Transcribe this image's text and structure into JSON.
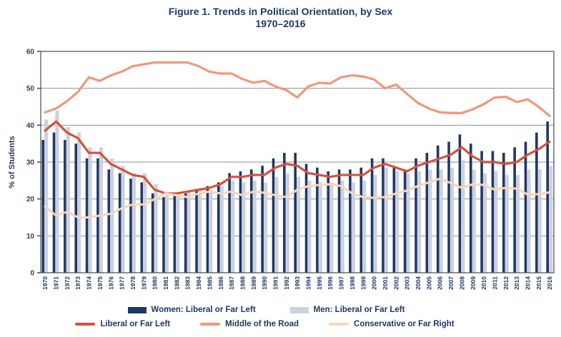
{
  "title": {
    "line1": "Figure 1. Trends in Political Orientation, by Sex",
    "line2": "1970–2016"
  },
  "colors": {
    "title_text": "#1f3864",
    "women_bar": "#1f3864",
    "men_bar": "#ccd2dd",
    "liberal_line": "#d85038",
    "middle_line": "#f0977a",
    "conservative_line": "#f8d5c0",
    "gridline": "#8f8f8f",
    "plot_border": "#4a4a4a",
    "axis_text": "#2f3a52"
  },
  "legend": {
    "row1": [
      {
        "label": "Women: Liberal or Far Left",
        "color": "#1f3864",
        "shape": "bar"
      },
      {
        "label": "Men: Liberal or Far Left",
        "color": "#ccd2dd",
        "shape": "bar"
      }
    ],
    "row2": [
      {
        "label": "Liberal or Far Left",
        "color": "#d85038",
        "shape": "line"
      },
      {
        "label": "Middle of the Road",
        "color": "#f0977a",
        "shape": "line"
      },
      {
        "label": "Conservative or Far Right",
        "color": "#f8d5c0",
        "shape": "line"
      }
    ]
  },
  "chart_data": {
    "type": "bar",
    "subtype": "grouped-bars-with-overlay-lines",
    "title": "Figure 1. Trends in Political Orientation, by Sex 1970–2016",
    "xlabel": "",
    "ylabel": "% of Students",
    "ylim": [
      0,
      60
    ],
    "yticks": [
      0,
      10,
      20,
      30,
      40,
      50,
      60
    ],
    "grid": true,
    "legend_position": "bottom",
    "categories": [
      1970,
      1971,
      1972,
      1973,
      1974,
      1975,
      1976,
      1977,
      1978,
      1979,
      1980,
      1981,
      1982,
      1983,
      1984,
      1985,
      1986,
      1987,
      1988,
      1989,
      1990,
      1991,
      1992,
      1993,
      1994,
      1995,
      1996,
      1997,
      1998,
      1999,
      2000,
      2001,
      2002,
      2003,
      2004,
      2005,
      2006,
      2007,
      2008,
      2009,
      2010,
      2011,
      2012,
      2013,
      2014,
      2015,
      2016
    ],
    "series": [
      {
        "name": "Women: Liberal or Far Left",
        "render": "bar",
        "color": "#1f3864",
        "values": [
          36,
          38,
          36,
          35,
          31,
          31,
          28,
          27,
          25.5,
          24.5,
          21.5,
          20.5,
          21,
          21.5,
          22.5,
          23.5,
          24.5,
          27,
          27.5,
          28,
          29,
          31,
          32.5,
          32.5,
          29.5,
          28.5,
          27.5,
          28,
          28,
          28.5,
          31,
          31,
          29,
          28,
          31,
          32.5,
          34.5,
          35.5,
          37.5,
          35,
          33,
          33,
          32.5,
          34,
          35.5,
          38,
          41
        ]
      },
      {
        "name": "Men: Liberal or Far Left",
        "render": "bar",
        "color": "#ccd2dd",
        "values": [
          41.5,
          44,
          39.5,
          38,
          34,
          34,
          31,
          29,
          27,
          27,
          24,
          21,
          21.5,
          22,
          22.5,
          22.5,
          23.5,
          25,
          24.5,
          25,
          24.5,
          26,
          27,
          26,
          25,
          24.5,
          24.5,
          25,
          24.5,
          25,
          26.5,
          28.5,
          27.5,
          27,
          27.5,
          28,
          28,
          28.5,
          30.5,
          28,
          27,
          27.5,
          26.5,
          26.5,
          28,
          28,
          29
        ]
      },
      {
        "name": "Liberal or Far Left",
        "render": "line",
        "color": "#d85038",
        "values": [
          38.5,
          41,
          38,
          36.5,
          32.5,
          32.5,
          29.5,
          28,
          26.5,
          26,
          22.5,
          21.5,
          21.5,
          22,
          22.5,
          23,
          24,
          26,
          26,
          26.5,
          26.5,
          28.5,
          29.5,
          29,
          27,
          26.5,
          26,
          26.5,
          26.5,
          26.5,
          28.5,
          29.5,
          28.5,
          27.5,
          29,
          30,
          31,
          32,
          34,
          31.5,
          30,
          30,
          29.5,
          30,
          32,
          33.5,
          35.5
        ]
      },
      {
        "name": "Middle of the Road",
        "render": "line",
        "color": "#f0977a",
        "values": [
          43.5,
          44.5,
          46.5,
          49,
          53,
          52,
          53.5,
          54.5,
          56,
          56.5,
          57,
          57,
          57,
          57,
          56,
          54.5,
          54,
          54,
          52.5,
          51.5,
          52,
          50.5,
          49.5,
          47.5,
          50.5,
          51.5,
          51.3,
          53,
          53.5,
          53.2,
          52.4,
          50,
          51,
          48.5,
          46,
          44.5,
          43.5,
          43.3,
          43.3,
          44.3,
          45.7,
          47.5,
          47.7,
          46.3,
          47,
          45,
          42.5
        ]
      },
      {
        "name": "Conservative or Far Right",
        "render": "line",
        "color": "#f8d5c0",
        "values": [
          18,
          15.5,
          16.5,
          15,
          15,
          15.5,
          16,
          17.5,
          18.5,
          18.5,
          20,
          21.5,
          21,
          20.5,
          21.5,
          22,
          21.5,
          22,
          21,
          22,
          21.7,
          21,
          20.5,
          22.5,
          23.5,
          23.8,
          24,
          23.5,
          21.5,
          20.5,
          20.3,
          20.5,
          21.5,
          22.3,
          23.5,
          24.5,
          25.5,
          24.3,
          23,
          24,
          23.8,
          22.5,
          23,
          22.8,
          21.2,
          21.3,
          21.8
        ]
      }
    ]
  }
}
